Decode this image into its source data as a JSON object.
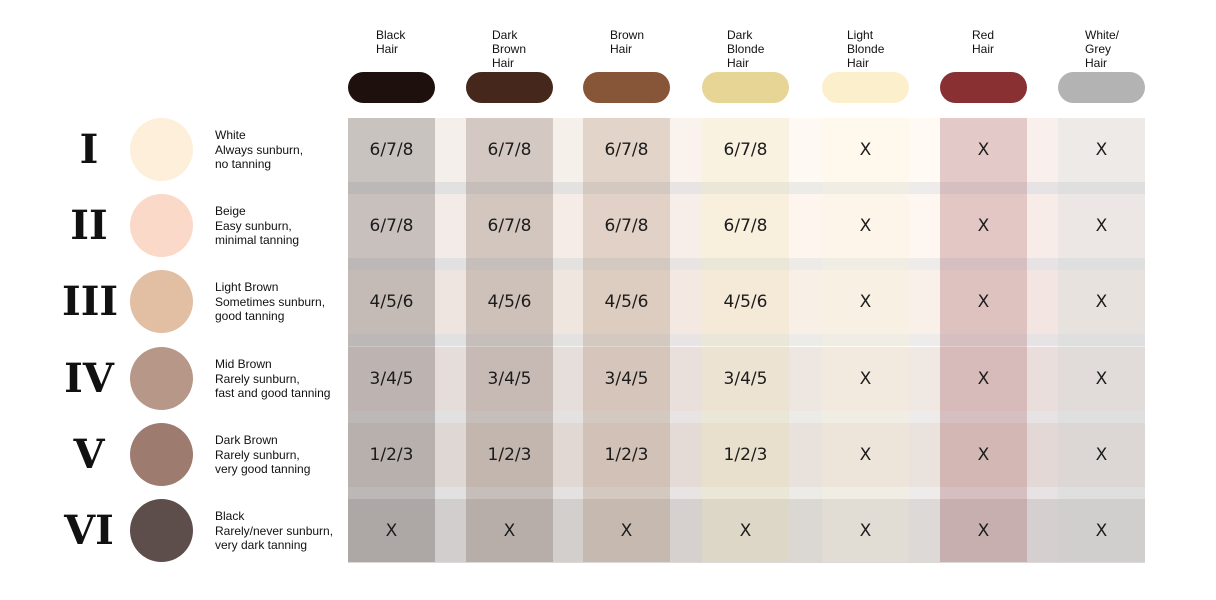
{
  "hair_columns": [
    {
      "label": "Black\nHair",
      "color": "#1e100c"
    },
    {
      "label": "Dark\nBrown\nHair",
      "color": "#45281b"
    },
    {
      "label": "Brown\nHair",
      "color": "#875638"
    },
    {
      "label": "Dark\nBlonde\nHair",
      "color": "#e6d595"
    },
    {
      "label": "Light\nBlonde\nHair",
      "color": "#fcf0cc"
    },
    {
      "label": "Red\nHair",
      "color": "#893033"
    },
    {
      "label": "White/\nGrey\nHair",
      "color": "#b3b3b3"
    }
  ],
  "skin_types": [
    {
      "numeral": "I",
      "name": "White",
      "line2": "Always sunburn,",
      "line3": "no tanning",
      "color": "#fdefd9",
      "values": [
        "6/7/8",
        "6/7/8",
        "6/7/8",
        "6/7/8",
        "X",
        "X",
        "X"
      ]
    },
    {
      "numeral": "II",
      "name": "Beige",
      "line2": "Easy sunburn,",
      "line3": "minimal tanning",
      "color": "#fbd9c8",
      "values": [
        "6/7/8",
        "6/7/8",
        "6/7/8",
        "6/7/8",
        "X",
        "X",
        "X"
      ]
    },
    {
      "numeral": "III",
      "name": "Light Brown",
      "line2": "Sometimes sunburn,",
      "line3": "good tanning",
      "color": "#e2bea2",
      "values": [
        "4/5/6",
        "4/5/6",
        "4/5/6",
        "4/5/6",
        "X",
        "X",
        "X"
      ]
    },
    {
      "numeral": "IV",
      "name": "Mid Brown",
      "line2": "Rarely sunburn,",
      "line3": "fast and good tanning",
      "color": "#b79787",
      "values": [
        "3/4/5",
        "3/4/5",
        "3/4/5",
        "3/4/5",
        "X",
        "X",
        "X"
      ]
    },
    {
      "numeral": "V",
      "name": "Dark Brown",
      "line2": "Rarely sunburn,",
      "line3": "very good tanning",
      "color": "#9d7b6f",
      "values": [
        "1/2/3",
        "1/2/3",
        "1/2/3",
        "1/2/3",
        "X",
        "X",
        "X"
      ]
    },
    {
      "numeral": "VI",
      "name": "Black",
      "line2": "Rarely/never sunburn,",
      "line3": "very dark tanning",
      "color": "#5d4e4b",
      "values": [
        "X",
        "X",
        "X",
        "X",
        "X",
        "X",
        "X"
      ]
    }
  ]
}
